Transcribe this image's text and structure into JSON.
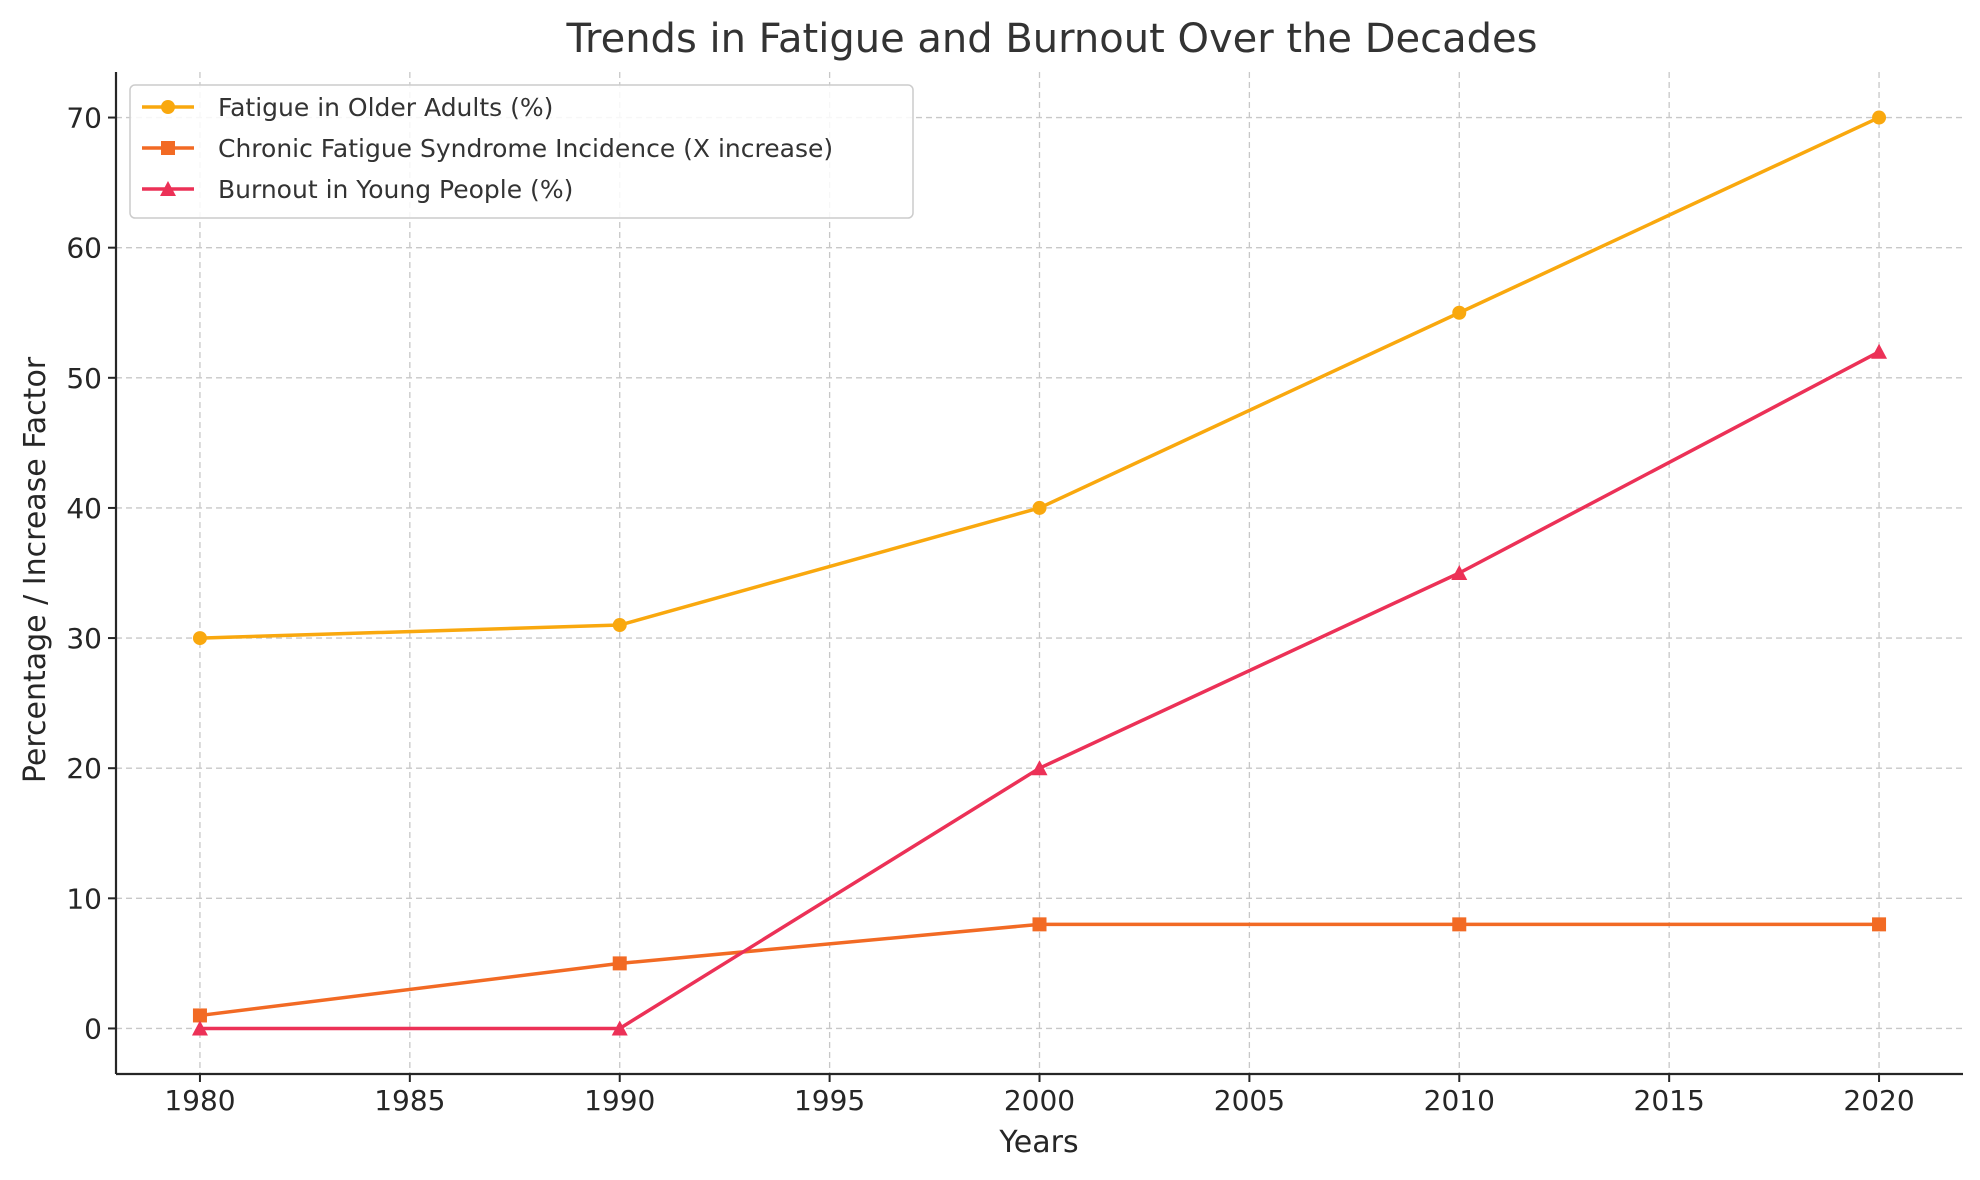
{
  "chart_data": {
    "type": "line",
    "title": "Trends in Fatigue and Burnout Over the Decades",
    "xlabel": "Years",
    "ylabel": "Percentage / Increase Factor",
    "x": [
      1980,
      1990,
      2000,
      2010,
      2020
    ],
    "xlim": [
      1978,
      2022
    ],
    "ylim": [
      -3.5,
      73.5
    ],
    "xticks": [
      1980,
      1985,
      1990,
      1995,
      2000,
      2005,
      2010,
      2015,
      2020
    ],
    "yticks": [
      0,
      10,
      20,
      30,
      40,
      50,
      60,
      70
    ],
    "grid": true,
    "legend_position": "top-left",
    "series": [
      {
        "name": "Fatigue in Older Adults (%)",
        "values": [
          30,
          31,
          40,
          55,
          70
        ],
        "color": "#F9A80E",
        "marker": "circle"
      },
      {
        "name": "Chronic Fatigue Syndrome Incidence (X increase)",
        "values": [
          1,
          5,
          8,
          8,
          8
        ],
        "color": "#F26A24",
        "marker": "square"
      },
      {
        "name": "Burnout in Young People (%)",
        "values": [
          0,
          0,
          20,
          35,
          52
        ],
        "color": "#EC3157",
        "marker": "triangle"
      }
    ]
  }
}
